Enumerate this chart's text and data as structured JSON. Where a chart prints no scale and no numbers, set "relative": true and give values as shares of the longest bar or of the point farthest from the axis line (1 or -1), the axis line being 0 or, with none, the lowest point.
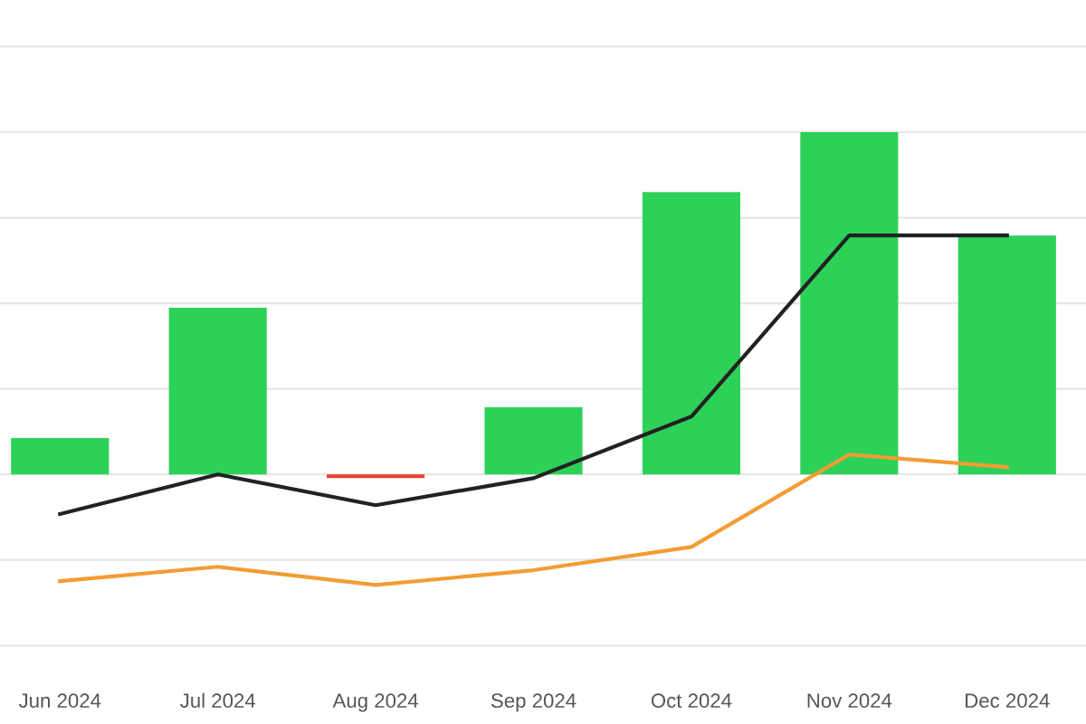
{
  "chart_data": {
    "type": "bar",
    "relative": true,
    "grid": "y",
    "categories": [
      "Jun 2024",
      "Jul 2024",
      "Aug 2024",
      "Sep 2024",
      "Oct 2024",
      "Nov 2024",
      "Dec 2024"
    ],
    "series": [
      {
        "values": [
          0.106,
          0.487,
          -0.011,
          0.196,
          0.825,
          1,
          0.698
        ],
        "colors": [
          "#2ed158",
          "#2ed158",
          "#e8412e",
          "#2ed158",
          "#2ed158",
          "#2ed158",
          "#2ed158"
        ]
      },
      {
        "type": "line",
        "color": "#222222",
        "values": [
          -0.116,
          0,
          -0.09,
          -0.011,
          0.169,
          0.698,
          0.698
        ]
      },
      {
        "type": "line",
        "color": "#f39c34",
        "values": [
          -0.312,
          -0.27,
          -0.323,
          -0.28,
          -0.212,
          0.058,
          0.021
        ]
      }
    ]
  }
}
